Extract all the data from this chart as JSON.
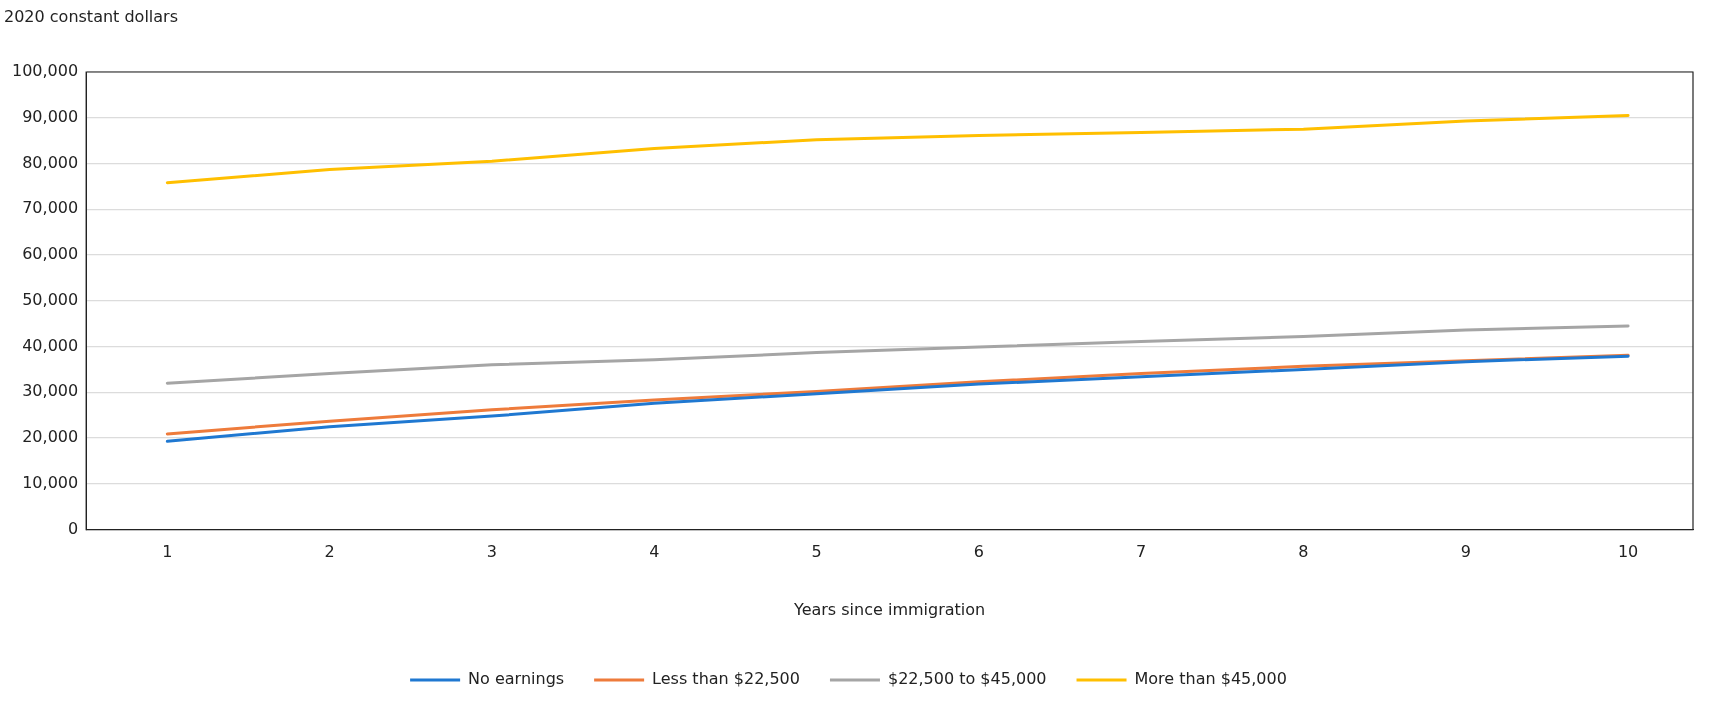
{
  "chart_data": {
    "type": "line",
    "ylabel": "2020 constant dollars",
    "xlabel": "Years since immigration",
    "x": [
      1,
      2,
      3,
      4,
      5,
      6,
      7,
      8,
      9,
      10
    ],
    "series": [
      {
        "name": "No earnings",
        "color": "#1f78d1",
        "values": [
          19300,
          22500,
          24800,
          27600,
          29700,
          31800,
          33400,
          35000,
          36700,
          37900
        ]
      },
      {
        "name": "Less than $22,500",
        "color": "#ee7b3b",
        "values": [
          20900,
          23700,
          26200,
          28300,
          30200,
          32300,
          34100,
          35700,
          36900,
          38100
        ]
      },
      {
        "name": "$22,500 to $45,000",
        "color": "#a5a5a5",
        "values": [
          32000,
          34100,
          36000,
          37100,
          38700,
          39900,
          41100,
          42200,
          43600,
          44500
        ]
      },
      {
        "name": "More than $45,000",
        "color": "#ffbf00",
        "values": [
          75800,
          78700,
          80500,
          83300,
          85200,
          86100,
          86800,
          87500,
          89300,
          90500
        ]
      }
    ],
    "xlim": [
      0.5,
      10.4
    ],
    "xticks": [
      1,
      2,
      3,
      4,
      5,
      6,
      7,
      8,
      9,
      10
    ],
    "ylim": [
      0,
      100000
    ],
    "yticks": [
      0,
      {
        "value": 10000,
        "label": "10,000"
      },
      {
        "value": 20000,
        "label": "20,000"
      },
      {
        "value": 30000,
        "label": "30,000"
      },
      {
        "value": 40000,
        "label": "40,000"
      },
      {
        "value": 50000,
        "label": "50,000"
      },
      {
        "value": 60000,
        "label": "60,000"
      },
      {
        "value": 70000,
        "label": "70,000"
      },
      {
        "value": 80000,
        "label": "80,000"
      },
      {
        "value": 90000,
        "label": "90,000"
      },
      {
        "value": 100000,
        "label": "100,000"
      }
    ],
    "grid": "y",
    "legend": "bottom",
    "marker": "none",
    "line_style": "solid"
  }
}
